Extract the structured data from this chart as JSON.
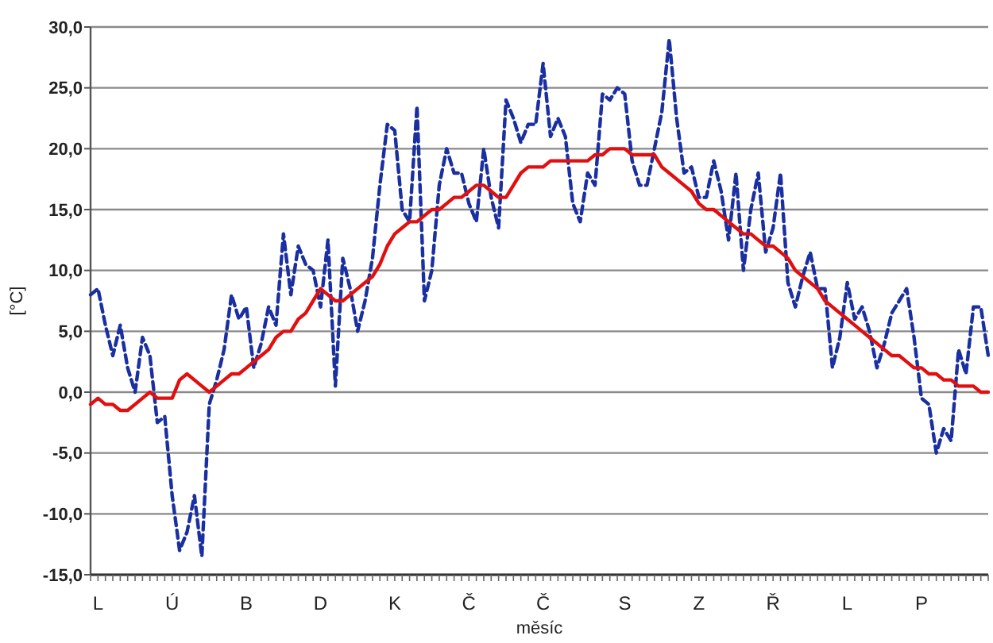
{
  "chart_data": {
    "type": "line",
    "xlabel": "měsíc",
    "ylabel": "[°C]",
    "categories": [
      null,
      "L",
      null,
      null,
      null,
      null,
      null,
      null,
      null,
      null,
      null,
      "Ú",
      null,
      null,
      null,
      null,
      null,
      null,
      null,
      null,
      null,
      "B",
      null,
      null,
      null,
      null,
      null,
      null,
      null,
      null,
      null,
      "D",
      null,
      null,
      null,
      null,
      null,
      null,
      null,
      null,
      null,
      "K",
      null,
      null,
      null,
      null,
      null,
      null,
      null,
      null,
      null,
      "Č",
      null,
      null,
      null,
      null,
      null,
      null,
      null,
      null,
      null,
      "Č",
      null,
      null,
      null,
      null,
      null,
      null,
      null,
      null,
      null,
      null,
      "S",
      null,
      null,
      null,
      null,
      null,
      null,
      null,
      null,
      null,
      "Z",
      null,
      null,
      null,
      null,
      null,
      null,
      null,
      null,
      null,
      "Ř",
      null,
      null,
      null,
      null,
      null,
      null,
      null,
      null,
      null,
      "L",
      null,
      null,
      null,
      null,
      null,
      null,
      null,
      null,
      null,
      "P",
      null,
      null,
      null,
      null,
      null,
      null,
      null,
      null,
      null
    ],
    "ylim": [
      -15,
      30
    ],
    "yticks": [
      {
        "value": -15,
        "label": "-15,0"
      },
      {
        "value": -10,
        "label": "-10,0"
      },
      {
        "value": -5,
        "label": "-5,0"
      },
      {
        "value": 0,
        "label": "0,0"
      },
      {
        "value": 5,
        "label": "5,0"
      },
      {
        "value": 10,
        "label": "10,0"
      },
      {
        "value": 15,
        "label": "15,0"
      },
      {
        "value": 20,
        "label": "20,0"
      },
      {
        "value": 25,
        "label": "25,0"
      },
      {
        "value": 30,
        "label": "30,0"
      }
    ],
    "grid": "y",
    "series": [
      {
        "color": "#1a2fa0",
        "line_style": "dashed",
        "values": [
          8,
          8.5,
          5.5,
          3,
          5.5,
          2,
          0,
          4.5,
          3,
          -2.5,
          -2,
          -8.5,
          -13,
          -11.5,
          -8.5,
          -13.5,
          -1,
          1,
          3.5,
          8,
          6,
          7,
          2,
          4,
          7,
          5.5,
          13,
          8,
          12,
          10.5,
          10,
          7,
          12.5,
          0.5,
          11,
          8.5,
          5,
          7.5,
          11,
          17,
          22,
          21.5,
          15,
          14,
          23.5,
          7.5,
          10,
          17,
          20,
          18,
          18,
          15.5,
          14,
          20,
          16,
          13.5,
          24,
          22.5,
          20.5,
          22,
          22,
          27,
          21,
          22.5,
          21,
          15.5,
          14,
          18,
          17,
          24.5,
          24,
          25,
          24.5,
          19,
          17,
          17,
          20,
          23,
          29,
          22.5,
          18,
          18.5,
          16,
          16,
          19,
          16.5,
          12.5,
          18,
          10,
          15,
          18,
          11.5,
          13.5,
          18,
          9,
          7,
          9.5,
          11.5,
          8.5,
          8.5,
          2,
          4.5,
          9,
          6,
          7,
          5,
          2,
          4,
          6.5,
          7.5,
          8.5,
          4.5,
          -0.5,
          -1,
          -5,
          -3,
          -4,
          3.5,
          1.5,
          7,
          7,
          3
        ]
      },
      {
        "color": "#e01010",
        "line_style": "solid",
        "values": [
          -1,
          -0.5,
          -1,
          -1,
          -1.5,
          -1.5,
          -1,
          -0.5,
          0,
          -0.5,
          -0.5,
          -0.5,
          1,
          1.5,
          1,
          0.5,
          0,
          0.5,
          1,
          1.5,
          1.5,
          2,
          2.5,
          3,
          3.5,
          4.5,
          5,
          5,
          6,
          6.5,
          7.5,
          8.5,
          8,
          7.5,
          7.5,
          8,
          8.5,
          9,
          9.5,
          10.5,
          12,
          13,
          13.5,
          14,
          14,
          14.5,
          15,
          15,
          15.5,
          16,
          16,
          16.5,
          17,
          17,
          16.5,
          16,
          16,
          17,
          18,
          18.5,
          18.5,
          18.5,
          19,
          19,
          19,
          19,
          19,
          19,
          19.5,
          19.5,
          20,
          20,
          20,
          19.5,
          19.5,
          19.5,
          19.5,
          18.5,
          18,
          17.5,
          17,
          16.5,
          15.5,
          15,
          15,
          14.5,
          14,
          13.5,
          13,
          13,
          12.5,
          12,
          12,
          11.5,
          11,
          10,
          9.5,
          9,
          8.5,
          7.5,
          7,
          6.5,
          6,
          5.5,
          5,
          4.5,
          4,
          3.5,
          3,
          3,
          2.5,
          2,
          2,
          1.5,
          1.5,
          1,
          1,
          0.5,
          0.5,
          0.5,
          0,
          0
        ]
      }
    ]
  }
}
